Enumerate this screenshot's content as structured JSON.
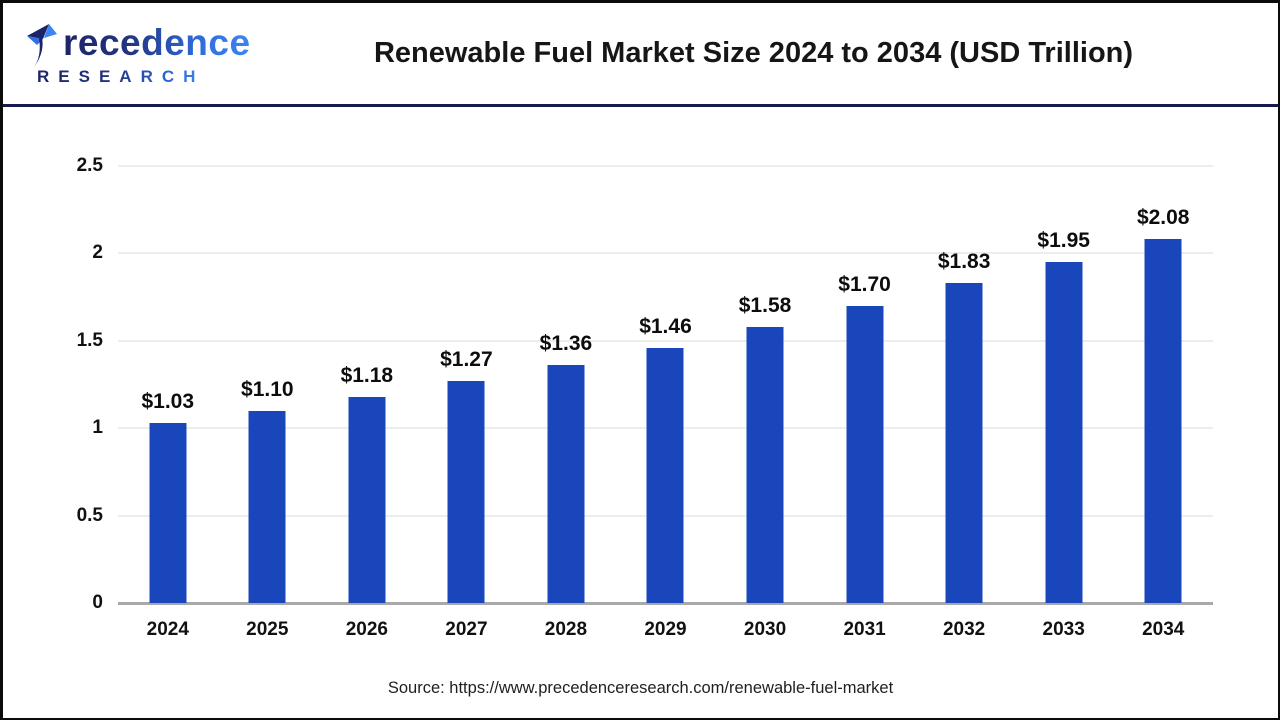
{
  "header": {
    "logo": {
      "name": "Precedence",
      "name_after_icon": "recedence",
      "subtitle": "RESEARCH",
      "subtitle_display": "R E S E A R C H"
    },
    "title": "Renewable Fuel Market Size 2024 to 2034 (USD Trillion)"
  },
  "chart_data": {
    "type": "bar",
    "title": "Renewable Fuel Market Size 2024 to 2034 (USD Trillion)",
    "categories": [
      "2024",
      "2025",
      "2026",
      "2027",
      "2028",
      "2029",
      "2030",
      "2031",
      "2032",
      "2033",
      "2034"
    ],
    "values": [
      1.03,
      1.1,
      1.18,
      1.27,
      1.36,
      1.46,
      1.58,
      1.7,
      1.83,
      1.95,
      2.08
    ],
    "value_labels": [
      "$1.03",
      "$1.10",
      "$1.18",
      "$1.27",
      "$1.36",
      "$1.46",
      "$1.58",
      "$1.70",
      "$1.83",
      "$1.95",
      "$2.08"
    ],
    "xlabel": "",
    "ylabel": "",
    "ylim": [
      0,
      2.5
    ],
    "yticks": [
      0,
      0.5,
      1,
      1.5,
      2,
      2.5
    ],
    "ytick_labels": [
      "0",
      "0.5",
      "1",
      "1.5",
      "2",
      "2.5"
    ],
    "grid": true,
    "legend": "none",
    "bar_color": "#1947BB"
  },
  "footer": {
    "source": "Source: https://www.precedenceresearch.com/renewable-fuel-market"
  },
  "colors": {
    "bar": "#1947BB",
    "header_divider": "#161a4d",
    "logo_navy": "#1b2468",
    "logo_blue": "#3d85f0",
    "gridline": "#ededed",
    "axis_line": "#a9a9a9",
    "title_text": "#161616",
    "frame": "#0b0b0b"
  }
}
